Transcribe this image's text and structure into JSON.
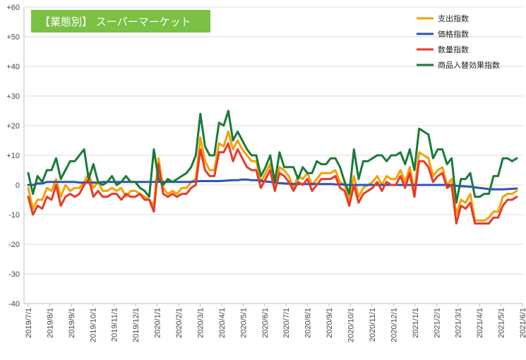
{
  "chart_data": {
    "type": "line",
    "title": "【業態別】 スーパーマーケット",
    "title_box_color": "#7ac143",
    "ylim": [
      -40,
      60
    ],
    "yticks": [
      -40,
      -30,
      -20,
      -10,
      0,
      10,
      20,
      30,
      40,
      50,
      60
    ],
    "ytick_labels": [
      "-40",
      "-30",
      "-20",
      "-10",
      "0",
      "+10",
      "+20",
      "+30",
      "+40",
      "+50",
      "+60"
    ],
    "grid": "horizontal",
    "legend_position": "top-right",
    "x_start": "2019/7/1",
    "x_end": "2021/6/1",
    "xtick_labels": [
      "2019/7/1",
      "2019/8/1",
      "2019/9/1",
      "2019/10/1",
      "2019/11/1",
      "2019/12/1",
      "2020/1/1",
      "2020/2/1",
      "2020/3/1",
      "2020/4/1",
      "2020/5/1",
      "2020/6/1",
      "2020/7/1",
      "2020/8/1",
      "2020/9/1",
      "2020/10/1",
      "2020/11/1",
      "2020/12/1",
      "2021/1/1",
      "2021/2/1",
      "2021/3/1",
      "2021/4/1",
      "2021/5/1",
      "2021/6/1"
    ],
    "series": [
      {
        "name": "支出指数",
        "color": "#f5a000",
        "values": [
          -1,
          -8,
          -5,
          -5,
          -1,
          -2,
          2,
          -4,
          0,
          -2,
          -1,
          -1,
          1,
          4,
          -1,
          1,
          -2,
          -2,
          -1,
          -2,
          -1,
          -4,
          -2,
          -2,
          -3,
          -4,
          -5,
          -7,
          9,
          -1,
          -3,
          -2,
          -3,
          -1,
          -1,
          1,
          2,
          16,
          8,
          5,
          5,
          14,
          13,
          18,
          12,
          15,
          12,
          10,
          8,
          8,
          1,
          4,
          7,
          -2,
          6,
          5,
          3,
          -1,
          3,
          2,
          4,
          0,
          2,
          4,
          4,
          4,
          5,
          1,
          0,
          -5,
          3,
          -4,
          -1,
          0,
          1,
          3,
          0,
          3,
          2,
          2,
          5,
          1,
          6,
          -2,
          11,
          10,
          9,
          3,
          5,
          6,
          0,
          2,
          -10,
          -5,
          -6,
          -3,
          -12,
          -12,
          -12,
          -11,
          -9,
          -9,
          -4,
          -3,
          -3,
          -2
        ]
      },
      {
        "name": "価格指数",
        "color": "#2855b8",
        "values": [
          0,
          0,
          0.5,
          0.5,
          1,
          1,
          1,
          1,
          1,
          1,
          1,
          0.8,
          0.8,
          0.8,
          0.8,
          0.8,
          1,
          1,
          1,
          1,
          1,
          1,
          1,
          1,
          1,
          1,
          1,
          1,
          1,
          1,
          1,
          1,
          1,
          1,
          1,
          1,
          1.2,
          1.3,
          1.3,
          1.3,
          1.3,
          1.3,
          1.4,
          1.5,
          1.6,
          1.6,
          1.8,
          1.8,
          1.6,
          1.6,
          1.4,
          1.2,
          1,
          0.8,
          0.6,
          0.5,
          0.4,
          0.3,
          0.3,
          0.3,
          0.3,
          0.3,
          0.3,
          0.3,
          0.3,
          0.3,
          0.2,
          0.2,
          0.1,
          0,
          0,
          0,
          0,
          0,
          0,
          0,
          0,
          0,
          0,
          0,
          0,
          0,
          0,
          0,
          0,
          0,
          0,
          0,
          0,
          0,
          0,
          0,
          -0.3,
          -0.4,
          -0.5,
          -0.6,
          -0.8,
          -1,
          -1.2,
          -1.4,
          -1.5,
          -1.5,
          -1.5,
          -1.4,
          -1.3,
          -1.2
        ]
      },
      {
        "name": "数量指数",
        "color": "#e83a2a",
        "values": [
          -4,
          -10,
          -7,
          -8,
          -4,
          -5,
          0,
          -7,
          -4,
          -3,
          -4,
          -3,
          0,
          2,
          -4,
          -2,
          -4,
          -4,
          -3,
          -3,
          -5,
          -3,
          -4,
          -4,
          -3,
          -5,
          -5,
          -9,
          7,
          -3,
          -4,
          -3,
          -4,
          -3,
          -3,
          -1,
          0,
          12,
          5,
          3,
          3,
          11,
          11,
          14,
          8,
          12,
          9,
          6,
          5,
          5,
          -1,
          2,
          5,
          -2,
          4,
          3,
          1,
          -2,
          1,
          0,
          2,
          -2,
          0,
          2,
          2,
          2,
          3,
          -1,
          -2,
          -7,
          0,
          -6,
          -3,
          -2,
          -1,
          1,
          -2,
          1,
          0,
          0,
          3,
          -1,
          4,
          -4,
          8,
          8,
          6,
          1,
          3,
          4,
          -1,
          0,
          -13,
          -7,
          -8,
          -6,
          -13,
          -13,
          -13,
          -13,
          -11,
          -11,
          -7,
          -5,
          -5,
          -4
        ]
      },
      {
        "name": "商品入替効果指数",
        "color": "#1a7a3a",
        "values": [
          4,
          -3,
          3,
          1,
          5,
          5,
          9,
          2,
          5,
          8,
          8,
          10,
          12,
          2,
          7,
          1,
          0,
          1,
          3,
          0,
          1,
          3,
          1,
          1,
          -1,
          -2,
          -4,
          12,
          2,
          0,
          2,
          1,
          2,
          3,
          4,
          6,
          10,
          24,
          13,
          10,
          10,
          21,
          20,
          25,
          15,
          18,
          15,
          12,
          10,
          10,
          3,
          6,
          10,
          1,
          11,
          6,
          6,
          6,
          2,
          6,
          4,
          4,
          8,
          7,
          7,
          9,
          9,
          6,
          1,
          -3,
          12,
          2,
          8,
          8,
          9,
          10,
          10,
          8,
          10,
          10,
          11,
          7,
          12,
          5,
          19,
          18,
          17,
          9,
          12,
          12,
          7,
          9,
          -6,
          2,
          2,
          4,
          -4,
          -4,
          -3,
          -3,
          3,
          3,
          9,
          9,
          8,
          9
        ]
      }
    ]
  }
}
